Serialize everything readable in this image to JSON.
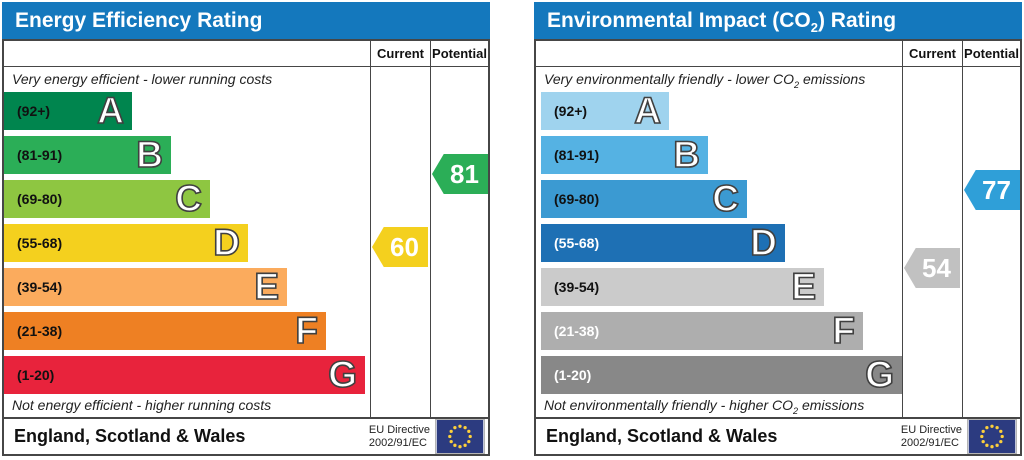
{
  "chart_data": [
    {
      "type": "epc_band_rating",
      "title_parts": {
        "before": "Energy Efficiency Rating",
        "sub": "",
        "after": ""
      },
      "header_color": "#1478bd",
      "columns": {
        "current": "Current",
        "potential": "Potential"
      },
      "captions": {
        "top_parts": {
          "before": "Very energy efficient - lower running costs",
          "sub": "",
          "after": ""
        },
        "bottom_parts": {
          "before": "Not energy efficient - higher running costs",
          "sub": "",
          "after": ""
        }
      },
      "bands": [
        {
          "letter": "A",
          "range_label": "(92+)",
          "min": 92,
          "max": 100,
          "color": "#00854e",
          "label_color": "#111111"
        },
        {
          "letter": "B",
          "range_label": "(81-91)",
          "min": 81,
          "max": 91,
          "color": "#2bae57",
          "label_color": "#111111"
        },
        {
          "letter": "C",
          "range_label": "(69-80)",
          "min": 69,
          "max": 80,
          "color": "#8ec641",
          "label_color": "#111111"
        },
        {
          "letter": "D",
          "range_label": "(55-68)",
          "min": 55,
          "max": 68,
          "color": "#f4d01e",
          "label_color": "#111111"
        },
        {
          "letter": "E",
          "range_label": "(39-54)",
          "min": 39,
          "max": 54,
          "color": "#fbab5d",
          "label_color": "#111111"
        },
        {
          "letter": "F",
          "range_label": "(21-38)",
          "min": 21,
          "max": 38,
          "color": "#ee8023",
          "label_color": "#111111"
        },
        {
          "letter": "G",
          "range_label": "(1-20)",
          "min": 1,
          "max": 20,
          "color": "#e8233c",
          "label_color": "#111111"
        }
      ],
      "current": {
        "value": 60,
        "color": "#f4d01e",
        "text_color": "#ffffff"
      },
      "potential": {
        "value": 81,
        "color": "#2bae57",
        "text_color": "#ffffff"
      },
      "letter_style": {
        "fill": "#ffffff",
        "outline": "#404040"
      },
      "footer": {
        "region": "England, Scotland & Wales",
        "directive_line1": "EU Directive",
        "directive_line2": "2002/91/EC",
        "flag_field_color": "#2c3b80",
        "flag_star_color": "#fccf3c"
      }
    },
    {
      "type": "epc_band_rating",
      "title_parts": {
        "before": "Environmental Impact (CO",
        "sub": "2",
        "after": ") Rating"
      },
      "header_color": "#1478bd",
      "columns": {
        "current": "Current",
        "potential": "Potential"
      },
      "captions": {
        "top_parts": {
          "before": "Very environmentally friendly - lower CO",
          "sub": "2",
          "after": " emissions"
        },
        "bottom_parts": {
          "before": "Not environmentally friendly - higher CO",
          "sub": "2",
          "after": " emissions"
        }
      },
      "bands": [
        {
          "letter": "A",
          "range_label": "(92+)",
          "min": 92,
          "max": 100,
          "color": "#9fd3ee",
          "label_color": "#111111"
        },
        {
          "letter": "B",
          "range_label": "(81-91)",
          "min": 81,
          "max": 91,
          "color": "#55b2e3",
          "label_color": "#111111"
        },
        {
          "letter": "C",
          "range_label": "(69-80)",
          "min": 69,
          "max": 80,
          "color": "#3b9ad2",
          "label_color": "#111111"
        },
        {
          "letter": "D",
          "range_label": "(55-68)",
          "min": 55,
          "max": 68,
          "color": "#1e70b4",
          "label_color": "#ffffff"
        },
        {
          "letter": "E",
          "range_label": "(39-54)",
          "min": 39,
          "max": 54,
          "color": "#cbcbcb",
          "label_color": "#111111"
        },
        {
          "letter": "F",
          "range_label": "(21-38)",
          "min": 21,
          "max": 38,
          "color": "#aeaeae",
          "label_color": "#ffffff"
        },
        {
          "letter": "G",
          "range_label": "(1-20)",
          "min": 1,
          "max": 20,
          "color": "#888888",
          "label_color": "#ffffff"
        }
      ],
      "current": {
        "value": 54,
        "color": "#c1c1c1",
        "text_color": "#ffffff"
      },
      "potential": {
        "value": 77,
        "color": "#2f9fd8",
        "text_color": "#ffffff"
      },
      "letter_style": {
        "fill": "#ffffff",
        "outline": "#404040"
      },
      "footer": {
        "region": "England, Scotland & Wales",
        "directive_line1": "EU Directive",
        "directive_line2": "2002/91/EC",
        "flag_field_color": "#2c3b80",
        "flag_star_color": "#fccf3c"
      }
    }
  ]
}
